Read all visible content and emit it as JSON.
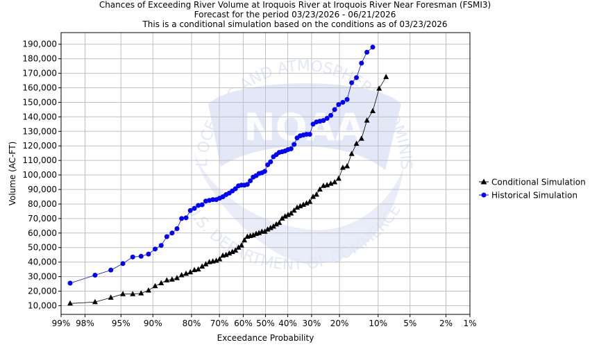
{
  "title_lines": [
    "Chances of Exceeding River Volume at Iroquois River at Iroquois River Near Foresman (FSMI3)",
    "Forecast for the period 03/23/2026 - 06/21/2026",
    "This is a conditional simulation based on the conditions as of 03/23/2026"
  ],
  "watermark": {
    "text_top": "NATIONAL OCEANIC AND ATMOSPHERIC ADMINISTRATION",
    "text_center": "NOAA",
    "text_bottom": "U.S. DEPARTMENT OF COMMERCE"
  },
  "colors": {
    "conditional": "#000000",
    "historical": "#0000ff",
    "grid": "#c0c0c0",
    "watermark": "#dfe6f7"
  },
  "chart_data": {
    "type": "line",
    "scale_x": "normal-probability",
    "xlabel": "Exceedance Probability",
    "ylabel": "Volume (AC-FT)",
    "ylim": [
      4000,
      198000
    ],
    "x_ticks": [
      {
        "p": 99,
        "label": "99%"
      },
      {
        "p": 98,
        "label": "98%"
      },
      {
        "p": 95,
        "label": "95%"
      },
      {
        "p": 90,
        "label": "90%"
      },
      {
        "p": 80,
        "label": "80%"
      },
      {
        "p": 70,
        "label": "70%"
      },
      {
        "p": 60,
        "label": "60%"
      },
      {
        "p": 50,
        "label": "50%"
      },
      {
        "p": 40,
        "label": "40%"
      },
      {
        "p": 30,
        "label": "30%"
      },
      {
        "p": 20,
        "label": "20%"
      },
      {
        "p": 10,
        "label": "10%"
      },
      {
        "p": 5,
        "label": "5%"
      },
      {
        "p": 2,
        "label": "2%"
      },
      {
        "p": 1,
        "label": "1%"
      }
    ],
    "y_ticks": [
      {
        "v": 10000,
        "label": "10,000"
      },
      {
        "v": 20000,
        "label": "20,000"
      },
      {
        "v": 30000,
        "label": "30,000"
      },
      {
        "v": 40000,
        "label": "40,000"
      },
      {
        "v": 50000,
        "label": "50,000"
      },
      {
        "v": 60000,
        "label": "60,000"
      },
      {
        "v": 70000,
        "label": "70,000"
      },
      {
        "v": 80000,
        "label": "80,000"
      },
      {
        "v": 90000,
        "label": "90,000"
      },
      {
        "v": 100000,
        "label": "100,000"
      },
      {
        "v": 110000,
        "label": "110,000"
      },
      {
        "v": 120000,
        "label": "120,000"
      },
      {
        "v": 130000,
        "label": "130,000"
      },
      {
        "v": 140000,
        "label": "140,000"
      },
      {
        "v": 150000,
        "label": "150,000"
      },
      {
        "v": 160000,
        "label": "160,000"
      },
      {
        "v": 170000,
        "label": "170,000"
      },
      {
        "v": 180000,
        "label": "180,000"
      },
      {
        "v": 190000,
        "label": "190,000"
      }
    ],
    "legend_position": "right",
    "series": [
      {
        "name": "Conditional Simulation",
        "marker": "triangle",
        "points": [
          [
            98.69,
            11500
          ],
          [
            97.38,
            12500
          ],
          [
            96.08,
            15500
          ],
          [
            94.77,
            18000
          ],
          [
            93.46,
            18000
          ],
          [
            92.16,
            18500
          ],
          [
            90.85,
            20500
          ],
          [
            89.54,
            23500
          ],
          [
            88.24,
            25500
          ],
          [
            86.93,
            27500
          ],
          [
            85.62,
            28000
          ],
          [
            84.31,
            29000
          ],
          [
            83.01,
            31000
          ],
          [
            81.7,
            32000
          ],
          [
            80.39,
            33000
          ],
          [
            79.08,
            34500
          ],
          [
            77.78,
            35000
          ],
          [
            76.47,
            37000
          ],
          [
            75.16,
            38500
          ],
          [
            73.86,
            40000
          ],
          [
            72.55,
            40500
          ],
          [
            71.24,
            41000
          ],
          [
            69.93,
            42000
          ],
          [
            68.63,
            44500
          ],
          [
            67.32,
            45000
          ],
          [
            66.01,
            46000
          ],
          [
            64.71,
            47000
          ],
          [
            63.4,
            48000
          ],
          [
            62.09,
            50000
          ],
          [
            60.78,
            51500
          ],
          [
            59.48,
            55000
          ],
          [
            58.17,
            57500
          ],
          [
            56.86,
            58000
          ],
          [
            55.56,
            58500
          ],
          [
            54.25,
            59500
          ],
          [
            52.94,
            60000
          ],
          [
            51.63,
            61000
          ],
          [
            50.33,
            61000
          ],
          [
            49.02,
            62500
          ],
          [
            47.71,
            63500
          ],
          [
            46.41,
            64500
          ],
          [
            45.1,
            66000
          ],
          [
            43.79,
            67000
          ],
          [
            42.48,
            70000
          ],
          [
            41.18,
            71500
          ],
          [
            39.87,
            72500
          ],
          [
            38.56,
            73500
          ],
          [
            37.25,
            75500
          ],
          [
            35.95,
            77500
          ],
          [
            34.64,
            78500
          ],
          [
            33.33,
            79500
          ],
          [
            32.03,
            80500
          ],
          [
            30.72,
            81500
          ],
          [
            29.41,
            85000
          ],
          [
            28.1,
            86500
          ],
          [
            26.8,
            90000
          ],
          [
            25.49,
            92500
          ],
          [
            24.18,
            93000
          ],
          [
            22.88,
            94000
          ],
          [
            21.57,
            95000
          ],
          [
            20.26,
            97500
          ],
          [
            18.95,
            105000
          ],
          [
            17.65,
            106000
          ],
          [
            16.34,
            114500
          ],
          [
            15.03,
            121500
          ],
          [
            13.73,
            125000
          ],
          [
            12.42,
            137500
          ],
          [
            11.11,
            144000
          ],
          [
            9.8,
            159500
          ],
          [
            8.5,
            167500
          ]
        ]
      },
      {
        "name": "Historical Simulation",
        "marker": "circle",
        "points": [
          [
            98.69,
            25500
          ],
          [
            97.38,
            31000
          ],
          [
            96.08,
            34500
          ],
          [
            94.77,
            39000
          ],
          [
            93.46,
            43500
          ],
          [
            92.16,
            44000
          ],
          [
            90.85,
            45500
          ],
          [
            89.54,
            49000
          ],
          [
            88.24,
            51500
          ],
          [
            86.93,
            57500
          ],
          [
            85.62,
            60000
          ],
          [
            84.31,
            63000
          ],
          [
            83.01,
            70000
          ],
          [
            81.7,
            70500
          ],
          [
            80.39,
            75500
          ],
          [
            79.08,
            77000
          ],
          [
            77.78,
            79000
          ],
          [
            76.47,
            79500
          ],
          [
            75.16,
            82000
          ],
          [
            73.86,
            82500
          ],
          [
            72.55,
            83000
          ],
          [
            71.24,
            83000
          ],
          [
            69.93,
            84000
          ],
          [
            68.63,
            85000
          ],
          [
            67.32,
            86500
          ],
          [
            66.01,
            87500
          ],
          [
            64.71,
            89000
          ],
          [
            63.4,
            90500
          ],
          [
            62.09,
            92500
          ],
          [
            60.78,
            93000
          ],
          [
            59.48,
            93000
          ],
          [
            58.17,
            93500
          ],
          [
            56.86,
            96000
          ],
          [
            55.56,
            98500
          ],
          [
            54.25,
            99500
          ],
          [
            52.94,
            101000
          ],
          [
            51.63,
            101500
          ],
          [
            50.33,
            102500
          ],
          [
            49.02,
            107000
          ],
          [
            47.71,
            109000
          ],
          [
            46.41,
            112500
          ],
          [
            45.1,
            114000
          ],
          [
            43.79,
            115500
          ],
          [
            42.48,
            116000
          ],
          [
            41.18,
            116500
          ],
          [
            39.87,
            117500
          ],
          [
            38.56,
            118000
          ],
          [
            37.25,
            121000
          ],
          [
            35.95,
            125500
          ],
          [
            34.64,
            127000
          ],
          [
            33.33,
            127500
          ],
          [
            32.03,
            128000
          ],
          [
            30.72,
            128000
          ],
          [
            29.41,
            135000
          ],
          [
            28.1,
            136500
          ],
          [
            26.8,
            137000
          ],
          [
            25.49,
            137500
          ],
          [
            24.18,
            139000
          ],
          [
            22.88,
            141000
          ],
          [
            21.57,
            145000
          ],
          [
            20.26,
            148500
          ],
          [
            18.95,
            150000
          ],
          [
            17.65,
            152000
          ],
          [
            16.34,
            163500
          ],
          [
            15.03,
            167000
          ],
          [
            13.73,
            177000
          ],
          [
            12.42,
            184500
          ],
          [
            11.11,
            188000
          ]
        ]
      }
    ]
  }
}
